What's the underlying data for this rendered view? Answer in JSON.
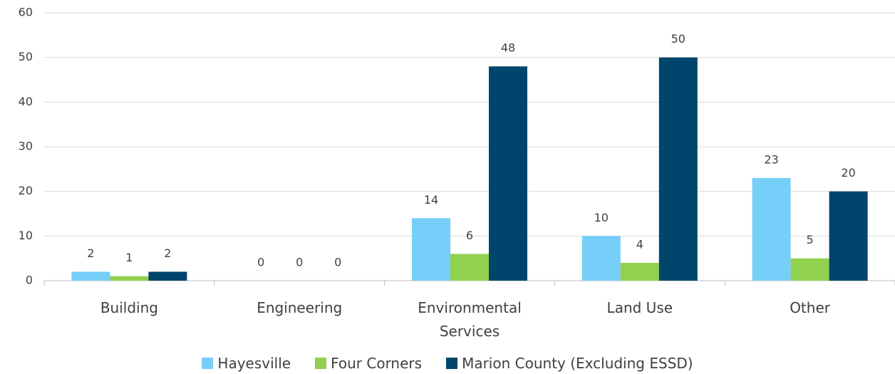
{
  "chart_data": {
    "type": "bar",
    "categories": [
      "Building",
      "Engineering",
      "Environmental Services",
      "Land Use",
      "Other"
    ],
    "series": [
      {
        "name": "Hayesville",
        "color": "#75cff8",
        "values": [
          2,
          0,
          14,
          10,
          23
        ]
      },
      {
        "name": "Four Corners",
        "color": "#92d050",
        "values": [
          1,
          0,
          6,
          4,
          5
        ]
      },
      {
        "name": "Marion County (Excluding ESSD)",
        "color": "#00456b",
        "values": [
          2,
          0,
          48,
          50,
          20
        ]
      }
    ],
    "ylim": [
      0,
      60
    ],
    "yticks": [
      0,
      10,
      20,
      30,
      40,
      50,
      60
    ],
    "grid": true,
    "legend": "bottom"
  }
}
